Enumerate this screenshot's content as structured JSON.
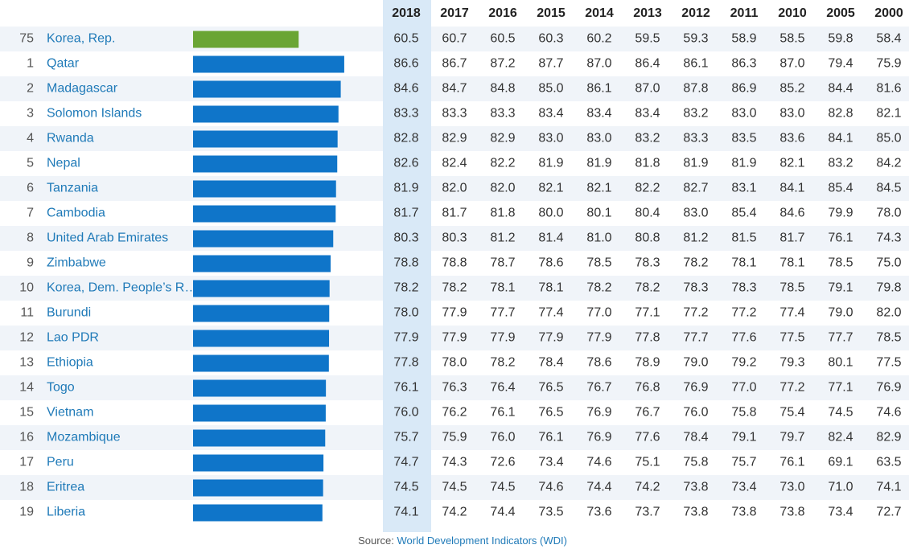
{
  "table": {
    "columns": [
      "2018",
      "2017",
      "2016",
      "2015",
      "2014",
      "2013",
      "2012",
      "2011",
      "2010",
      "2005",
      "2000"
    ],
    "rows": [
      {
        "rank": 75,
        "country": "Korea, Rep.",
        "values": [
          "60.5",
          "60.7",
          "60.5",
          "60.3",
          "60.2",
          "59.5",
          "59.3",
          "58.9",
          "58.5",
          "59.8",
          "58.4"
        ]
      },
      {
        "rank": 1,
        "country": "Qatar",
        "values": [
          "86.6",
          "86.7",
          "87.2",
          "87.7",
          "87.0",
          "86.4",
          "86.1",
          "86.3",
          "87.0",
          "79.4",
          "75.9"
        ]
      },
      {
        "rank": 2,
        "country": "Madagascar",
        "values": [
          "84.6",
          "84.7",
          "84.8",
          "85.0",
          "86.1",
          "87.0",
          "87.8",
          "86.9",
          "85.2",
          "84.4",
          "81.6"
        ]
      },
      {
        "rank": 3,
        "country": "Solomon Islands",
        "values": [
          "83.3",
          "83.3",
          "83.3",
          "83.4",
          "83.4",
          "83.4",
          "83.2",
          "83.0",
          "83.0",
          "82.8",
          "82.1"
        ]
      },
      {
        "rank": 4,
        "country": "Rwanda",
        "values": [
          "82.8",
          "82.9",
          "82.9",
          "83.0",
          "83.0",
          "83.2",
          "83.3",
          "83.5",
          "83.6",
          "84.1",
          "85.0"
        ]
      },
      {
        "rank": 5,
        "country": "Nepal",
        "values": [
          "82.6",
          "82.4",
          "82.2",
          "81.9",
          "81.9",
          "81.8",
          "81.9",
          "81.9",
          "82.1",
          "83.2",
          "84.2"
        ]
      },
      {
        "rank": 6,
        "country": "Tanzania",
        "values": [
          "81.9",
          "82.0",
          "82.0",
          "82.1",
          "82.1",
          "82.2",
          "82.7",
          "83.1",
          "84.1",
          "85.4",
          "84.5"
        ]
      },
      {
        "rank": 7,
        "country": "Cambodia",
        "values": [
          "81.7",
          "81.7",
          "81.8",
          "80.0",
          "80.1",
          "80.4",
          "83.0",
          "85.4",
          "84.6",
          "79.9",
          "78.0"
        ]
      },
      {
        "rank": 8,
        "country": "United Arab Emirates",
        "values": [
          "80.3",
          "80.3",
          "81.2",
          "81.4",
          "81.0",
          "80.8",
          "81.2",
          "81.5",
          "81.7",
          "76.1",
          "74.3"
        ]
      },
      {
        "rank": 9,
        "country": "Zimbabwe",
        "values": [
          "78.8",
          "78.8",
          "78.7",
          "78.6",
          "78.5",
          "78.3",
          "78.2",
          "78.1",
          "78.1",
          "78.5",
          "75.0"
        ]
      },
      {
        "rank": 10,
        "country": "Korea, Dem. People’s R…",
        "values": [
          "78.2",
          "78.2",
          "78.1",
          "78.1",
          "78.2",
          "78.2",
          "78.3",
          "78.3",
          "78.5",
          "79.1",
          "79.8"
        ]
      },
      {
        "rank": 11,
        "country": "Burundi",
        "values": [
          "78.0",
          "77.9",
          "77.7",
          "77.4",
          "77.0",
          "77.1",
          "77.2",
          "77.2",
          "77.4",
          "79.0",
          "82.0"
        ]
      },
      {
        "rank": 12,
        "country": "Lao PDR",
        "values": [
          "77.9",
          "77.9",
          "77.9",
          "77.9",
          "77.9",
          "77.8",
          "77.7",
          "77.6",
          "77.5",
          "77.7",
          "78.5"
        ]
      },
      {
        "rank": 13,
        "country": "Ethiopia",
        "values": [
          "77.8",
          "78.0",
          "78.2",
          "78.4",
          "78.6",
          "78.9",
          "79.0",
          "79.2",
          "79.3",
          "80.1",
          "77.5"
        ]
      },
      {
        "rank": 14,
        "country": "Togo",
        "values": [
          "76.1",
          "76.3",
          "76.4",
          "76.5",
          "76.7",
          "76.8",
          "76.9",
          "77.0",
          "77.2",
          "77.1",
          "76.9"
        ]
      },
      {
        "rank": 15,
        "country": "Vietnam",
        "values": [
          "76.0",
          "76.2",
          "76.1",
          "76.5",
          "76.9",
          "76.7",
          "76.0",
          "75.8",
          "75.4",
          "74.5",
          "74.6"
        ]
      },
      {
        "rank": 16,
        "country": "Mozambique",
        "values": [
          "75.7",
          "75.9",
          "76.0",
          "76.1",
          "76.9",
          "77.6",
          "78.4",
          "79.1",
          "79.7",
          "82.4",
          "82.9"
        ]
      },
      {
        "rank": 17,
        "country": "Peru",
        "values": [
          "74.7",
          "74.3",
          "72.6",
          "73.4",
          "74.6",
          "75.1",
          "75.8",
          "75.7",
          "76.1",
          "69.1",
          "63.5"
        ]
      },
      {
        "rank": 18,
        "country": "Eritrea",
        "values": [
          "74.5",
          "74.5",
          "74.5",
          "74.6",
          "74.4",
          "74.2",
          "73.8",
          "73.4",
          "73.0",
          "71.0",
          "74.1"
        ]
      },
      {
        "rank": 19,
        "country": "Liberia",
        "values": [
          "74.1",
          "74.2",
          "74.4",
          "73.5",
          "73.6",
          "73.7",
          "73.8",
          "73.8",
          "73.8",
          "73.4",
          "72.7"
        ]
      }
    ]
  },
  "source": {
    "label": "Source:",
    "link": "World Development Indicators (WDI)"
  }
}
